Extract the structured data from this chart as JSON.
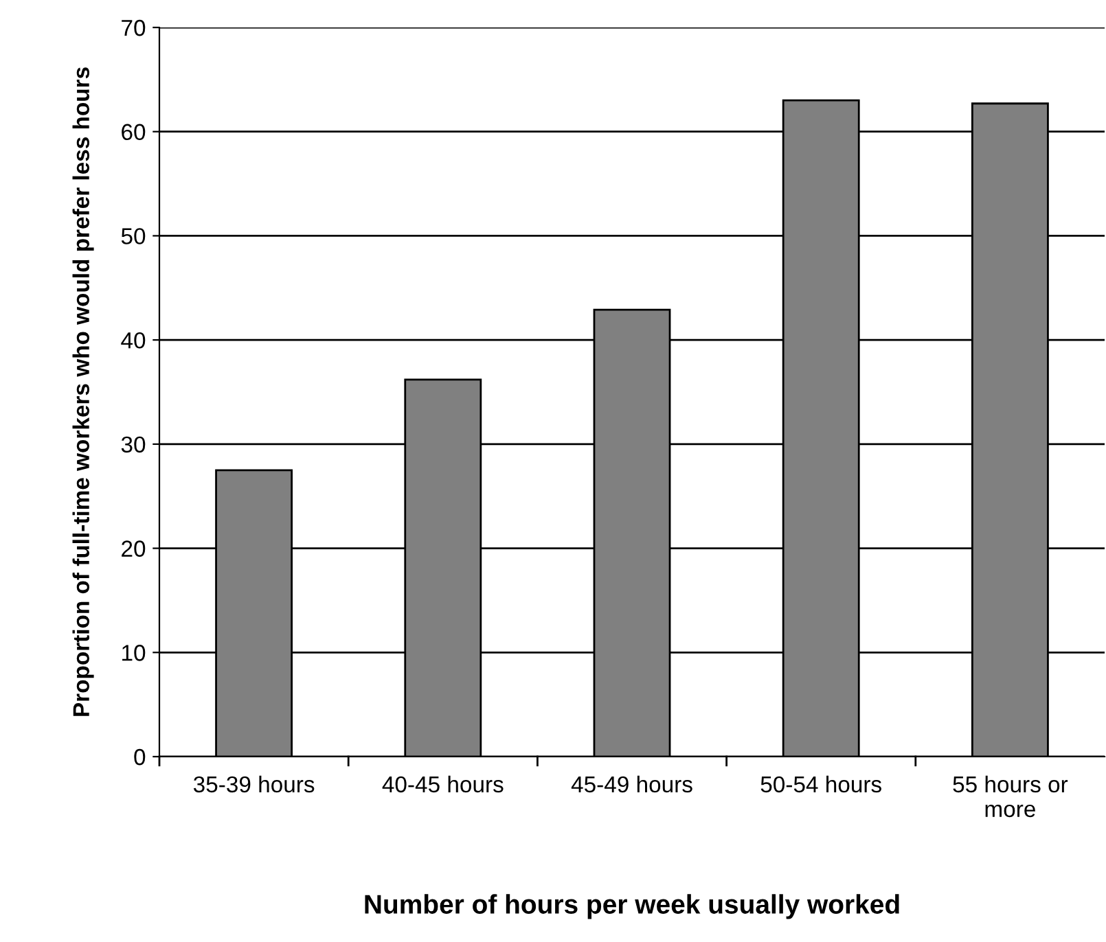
{
  "chart_data": {
    "type": "bar",
    "xlabel": "Number of hours per week usually worked",
    "ylabel": "Proportion of full-time workers who would prefer less hours",
    "categories": [
      "35-39 hours",
      "40-45 hours",
      "45-49 hours",
      "50-54 hours",
      "55 hours or\nmore"
    ],
    "values": [
      27.5,
      36.2,
      42.9,
      63.0,
      62.7
    ],
    "color": "#808080",
    "ylim": [
      0,
      70
    ],
    "yticks": [
      0,
      10,
      20,
      30,
      40,
      50,
      60,
      70
    ],
    "grid": "y"
  }
}
